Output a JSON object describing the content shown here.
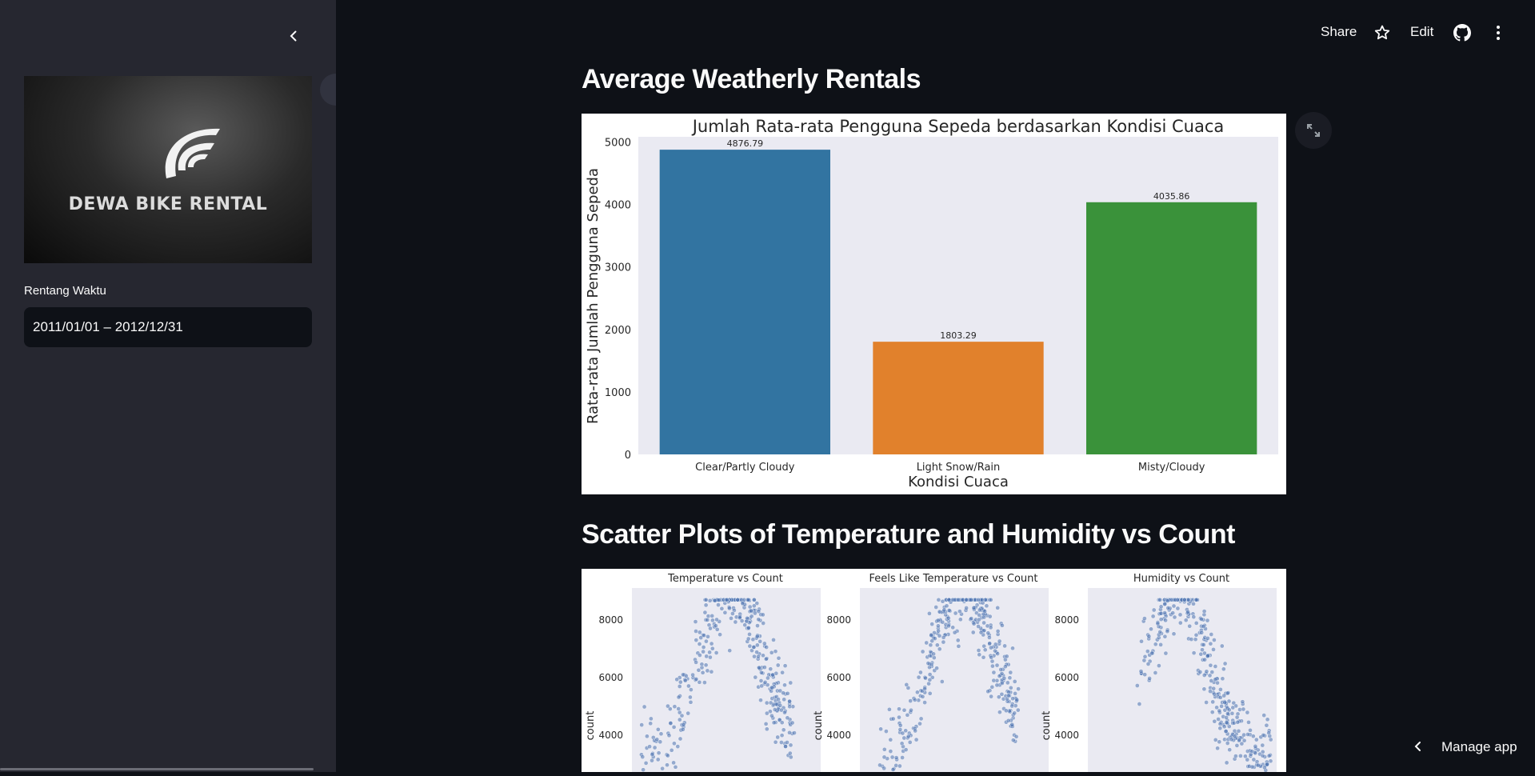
{
  "sidebar": {
    "logo_text": "DEWA BIKE RENTAL",
    "date_label": "Rentang Waktu",
    "date_value": "2011/01/01 – 2012/12/31"
  },
  "topbar": {
    "share": "Share",
    "edit": "Edit"
  },
  "main": {
    "section1_title": "Average Weatherly Rentals",
    "section2_title": "Scatter Plots of Temperature and Humidity vs Count"
  },
  "footer": {
    "manage_app": "Manage app"
  },
  "icons": {
    "collapse": "chevron-left-icon",
    "star": "star-icon",
    "github": "github-icon",
    "menu": "kebab-menu-icon",
    "expand": "fullscreen-icon"
  },
  "chart_data": [
    {
      "type": "bar",
      "title": "Jumlah Rata-rata Pengguna Sepeda berdasarkan Kondisi Cuaca",
      "xlabel": "Kondisi Cuaca",
      "ylabel": "Rata-rata Jumlah Pengguna Sepeda",
      "categories": [
        "Clear/Partly Cloudy",
        "Light Snow/Rain",
        "Misty/Cloudy"
      ],
      "values": [
        4876.79,
        1803.29,
        4035.86
      ],
      "data_labels": [
        "4876.79",
        "1803.29",
        "4035.86"
      ],
      "colors": [
        "#3274a1",
        "#e1812c",
        "#3a923a"
      ],
      "ylim": [
        0,
        5200
      ],
      "yticks": [
        0,
        1000,
        2000,
        3000,
        4000,
        5000
      ],
      "background": "#eaeaf2",
      "grid": false
    },
    {
      "type": "scatter",
      "title": "Temperature vs Count",
      "ylabel": "count",
      "yticks": [
        4000,
        6000,
        8000
      ],
      "x_visible_range": [
        0.05,
        0.86
      ],
      "points_visible": 380,
      "color": "#4c72b0"
    },
    {
      "type": "scatter",
      "title": "Feels Like Temperature vs Count",
      "ylabel": "count",
      "yticks": [
        4000,
        6000,
        8000
      ],
      "x_visible_range": [
        0.08,
        0.84
      ],
      "points_visible": 380,
      "color": "#4c72b0"
    },
    {
      "type": "scatter",
      "title": "Humidity vs Count",
      "ylabel": "count",
      "yticks": [
        4000,
        6000,
        8000
      ],
      "x_visible_range": [
        0.25,
        0.97
      ],
      "points_visible": 380,
      "color": "#4c72b0"
    }
  ]
}
